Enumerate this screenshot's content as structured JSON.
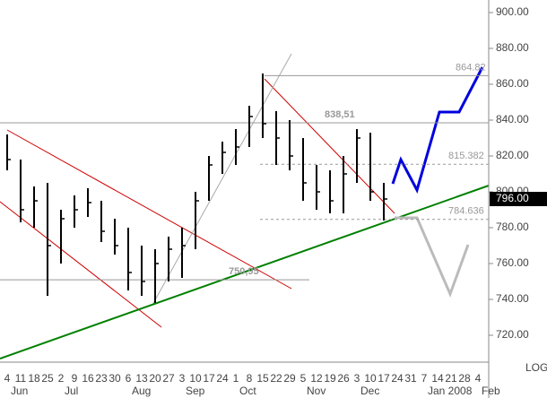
{
  "chart_data": {
    "type": "ohlc",
    "categories": [
      "4",
      "11",
      "18",
      "25",
      "2",
      "9",
      "16",
      "23",
      "30",
      "6",
      "13",
      "20",
      "27",
      "3",
      "10",
      "17",
      "24",
      "1",
      "8",
      "15",
      "22",
      "29",
      "5",
      "12",
      "19",
      "26",
      "3",
      "10",
      "17",
      "24",
      "31",
      "7",
      "14",
      "21",
      "28",
      "4"
    ],
    "month_labels": [
      "Jun",
      null,
      null,
      null,
      "Jul",
      null,
      null,
      null,
      null,
      "Aug",
      null,
      null,
      null,
      "Sep",
      null,
      null,
      null,
      "Oct",
      null,
      null,
      null,
      null,
      "Nov",
      null,
      null,
      null,
      "Dec",
      null,
      null,
      null,
      null,
      "Jan 2008",
      null,
      null,
      null,
      "Feb"
    ],
    "high": [
      832,
      818,
      803,
      805,
      790,
      798,
      802,
      795,
      785,
      780,
      770,
      768,
      775,
      780,
      800,
      820,
      828,
      835,
      848,
      866,
      845,
      840,
      830,
      815,
      812,
      820,
      835,
      833,
      805,
      null,
      null,
      null,
      null,
      null,
      null,
      null
    ],
    "low": [
      812,
      783,
      780,
      742,
      760,
      780,
      786,
      772,
      765,
      745,
      742,
      738,
      750,
      752,
      768,
      795,
      810,
      815,
      825,
      830,
      815,
      812,
      795,
      790,
      788,
      788,
      805,
      795,
      784,
      null,
      null,
      null,
      null,
      null,
      null,
      null
    ],
    "close": [
      818,
      790,
      795,
      770,
      785,
      790,
      794,
      778,
      770,
      755,
      750,
      760,
      768,
      770,
      795,
      815,
      822,
      825,
      842,
      838,
      830,
      820,
      805,
      800,
      795,
      810,
      830,
      800,
      796,
      null,
      null,
      null,
      null,
      null,
      null,
      null
    ],
    "color": "#000000",
    "ylim": [
      705,
      907
    ],
    "yticks": [
      {
        "value": 720,
        "label": "720.00"
      },
      {
        "value": 740,
        "label": "740.00"
      },
      {
        "value": 760,
        "label": "760.00"
      },
      {
        "value": 780,
        "label": "780.00"
      },
      {
        "value": 800,
        "label": "800.00"
      },
      {
        "value": 820,
        "label": "820.00"
      },
      {
        "value": 840,
        "label": "840.00"
      },
      {
        "value": 860,
        "label": "860.00"
      },
      {
        "value": 880,
        "label": "880.00"
      },
      {
        "value": 900,
        "label": "900.00"
      }
    ],
    "levels": [
      {
        "value": 864.82,
        "label": "864.82"
      },
      {
        "value": 838.51,
        "label": "838,51"
      },
      {
        "value": 815.382,
        "label": "815.382"
      },
      {
        "value": 784.636,
        "label": "784.636"
      },
      {
        "value": 750.95,
        "label": "750,95"
      }
    ],
    "last_price": {
      "value": 796,
      "label": "796.00"
    },
    "scale_label": "LOG",
    "grid": false
  }
}
